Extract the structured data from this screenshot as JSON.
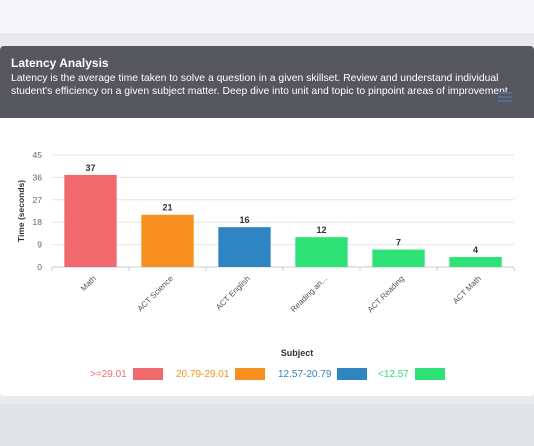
{
  "header": {
    "title": "Latency Analysis",
    "description": "Latency is the average time taken to solve a question in a given skillset. Review and understand individual student's efficiency on a given subject matter. Deep dive into unit and topic to pinpoint areas of improvement."
  },
  "menu_icon": "hamburger-menu-icon",
  "colors": {
    "header_bg": "#55565e",
    "red": "#f06a6d",
    "orange": "#f7901e",
    "blue": "#2e85c2",
    "green": "#2ee277"
  },
  "chart_data": {
    "type": "bar",
    "categories": [
      "Math",
      "ACT Science",
      "ACT English",
      "Reading an...",
      "ACT Reading",
      "ACT Math"
    ],
    "values": [
      37,
      21,
      16,
      12,
      7,
      4
    ],
    "data_labels": [
      "37",
      "21",
      "16",
      "12",
      "7",
      "4"
    ],
    "bar_colors": [
      "#f06a6d",
      "#f7901e",
      "#2e85c2",
      "#2ee277",
      "#2ee277",
      "#2ee277"
    ],
    "xlabel": "Subject",
    "ylabel": "Time (seconds)",
    "ylim": [
      0,
      45
    ],
    "yticks": [
      0,
      9,
      18,
      27,
      36,
      45
    ],
    "grid": true,
    "legend_position": "bottom",
    "legend": [
      {
        "label": ">=29.01",
        "color": "#f06a6d"
      },
      {
        "label": "20.79-29.01",
        "color": "#f7901e"
      },
      {
        "label": "12.57-20.79",
        "color": "#2e85c2"
      },
      {
        "label": "<12.57",
        "color": "#2ee277"
      }
    ]
  }
}
